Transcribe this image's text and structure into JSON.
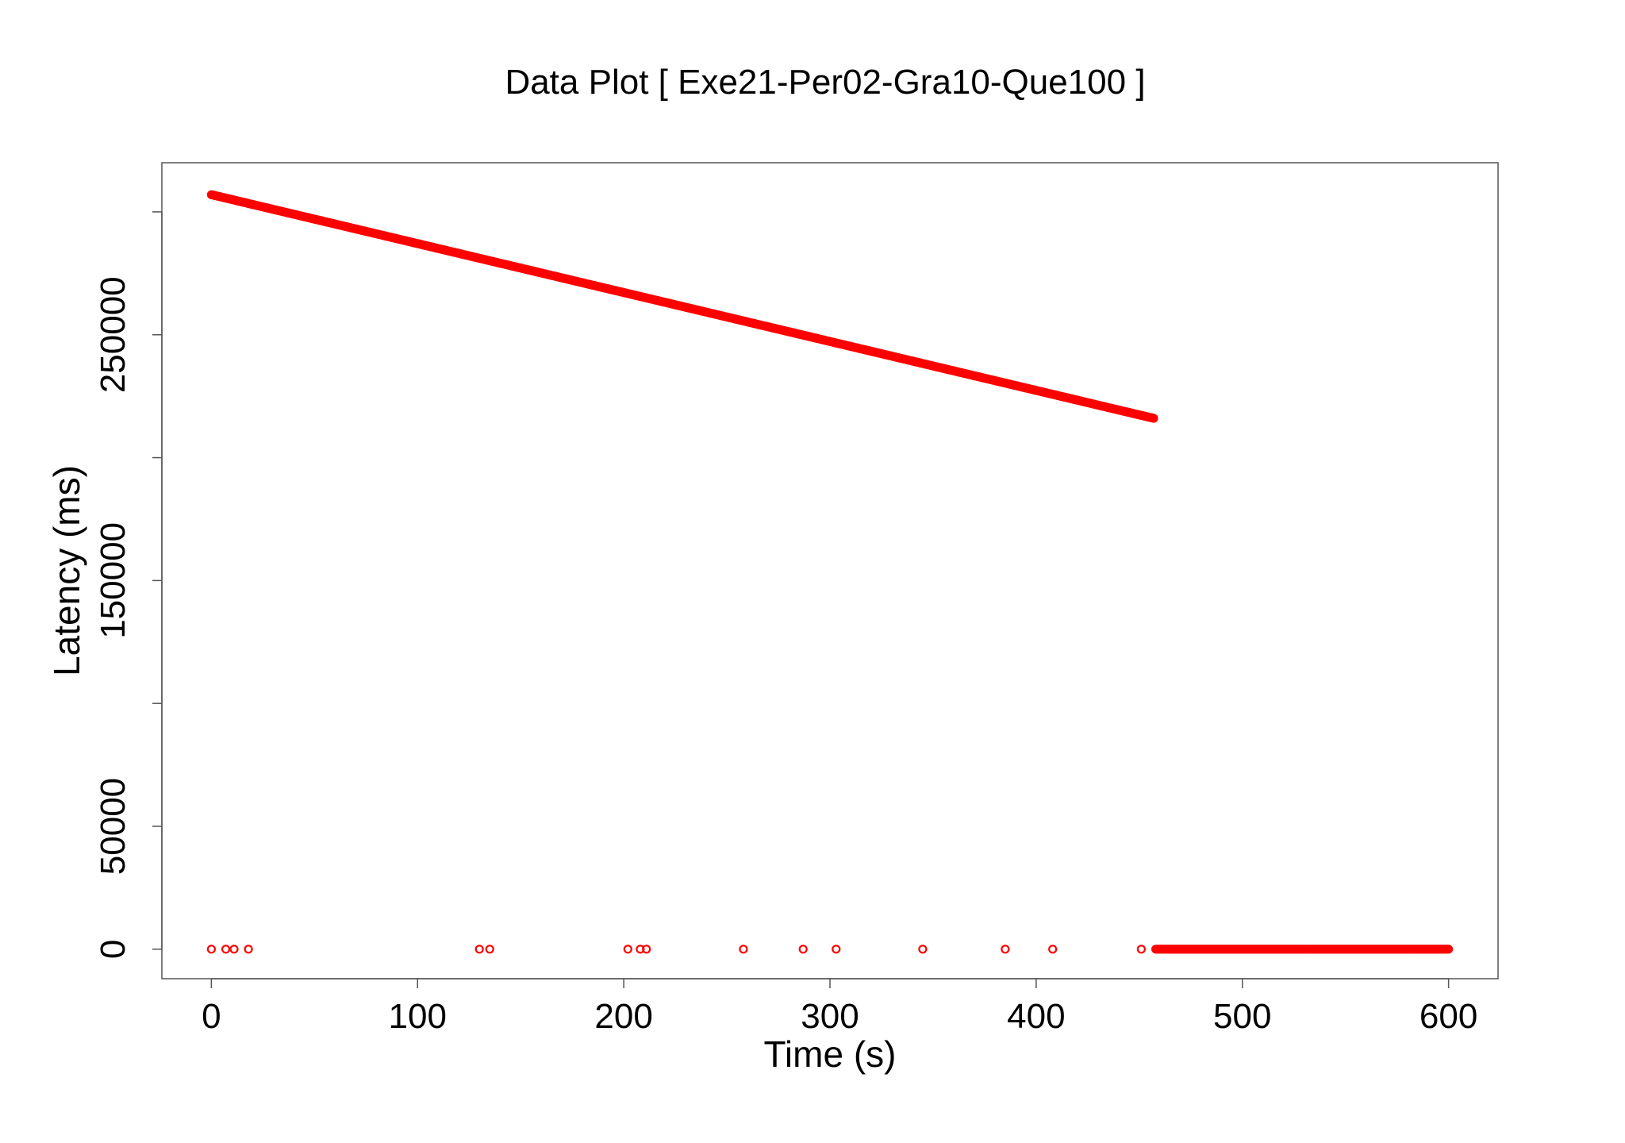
{
  "chart_data": {
    "type": "scatter",
    "title": "Data Plot [ Exe21-Per02-Gra10-Que100 ]",
    "xlabel": "Time (s)",
    "ylabel": "Latency (ms)",
    "xlim": [
      -24,
      624
    ],
    "ylim": [
      -12000,
      320000
    ],
    "x_ticks": [
      0,
      100,
      200,
      300,
      400,
      500,
      600
    ],
    "x_tick_labels": [
      "0",
      "100",
      "200",
      "300",
      "400",
      "500",
      "600"
    ],
    "y_ticks": [
      0,
      50000,
      100000,
      150000,
      200000,
      250000,
      300000
    ],
    "y_tick_labels": [
      "0",
      "50000",
      "",
      "150000",
      "",
      "250000",
      ""
    ],
    "grid": false,
    "marker": "open-circle",
    "series": [
      {
        "color": "#ff0000",
        "segments": [
          {
            "x_start": 0,
            "x_end": 457,
            "y_start": 307000,
            "y_end": 216000,
            "kind": "decreasing-line"
          },
          {
            "x_start": 458,
            "x_end": 600,
            "y_start": 0,
            "y_end": 0,
            "kind": "flat-zero"
          }
        ],
        "isolated_points": [
          {
            "x": 0,
            "y": 0
          },
          {
            "x": 7,
            "y": 0
          },
          {
            "x": 11,
            "y": 0
          },
          {
            "x": 18,
            "y": 0
          },
          {
            "x": 130,
            "y": 0
          },
          {
            "x": 135,
            "y": 0
          },
          {
            "x": 202,
            "y": 0
          },
          {
            "x": 208,
            "y": 0
          },
          {
            "x": 211,
            "y": 0
          },
          {
            "x": 258,
            "y": 0
          },
          {
            "x": 287,
            "y": 0
          },
          {
            "x": 303,
            "y": 0
          },
          {
            "x": 345,
            "y": 0
          },
          {
            "x": 385,
            "y": 0
          },
          {
            "x": 408,
            "y": 0
          },
          {
            "x": 451,
            "y": 0
          }
        ]
      }
    ]
  }
}
